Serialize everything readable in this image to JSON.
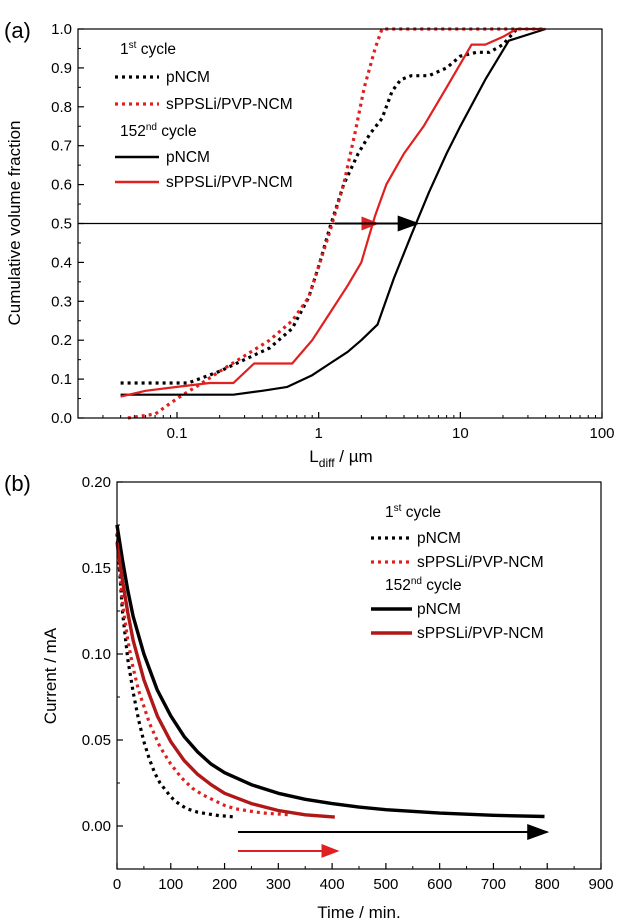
{
  "panel_labels": [
    "(a)",
    "(b)"
  ],
  "chart_data": [
    {
      "type": "line",
      "panel": "(a)",
      "xlabel_main": "L",
      "xlabel_sub": "diff",
      "xlabel_unit": " / µm",
      "ylabel": "Cumulative volume fraction",
      "xscale": "log",
      "xlim": [
        0.02,
        100
      ],
      "ylim": [
        0,
        1.0
      ],
      "xticks": [
        0.1,
        1,
        10,
        100
      ],
      "xtick_labels": [
        "0.1",
        "1",
        "10",
        "100"
      ],
      "yticks": [
        0.0,
        0.1,
        0.2,
        0.3,
        0.4,
        0.5,
        0.6,
        0.7,
        0.8,
        0.9,
        1.0
      ],
      "ytick_labels": [
        "0.0",
        "0.1",
        "0.2",
        "0.3",
        "0.4",
        "0.5",
        "0.6",
        "0.7",
        "0.8",
        "0.9",
        "1.0"
      ],
      "legend": {
        "group1_main": "1",
        "group1_sup": "st",
        "group1_rest": " cycle",
        "group2_main": "152",
        "group2_sup": "nd",
        "group2_rest": " cycle",
        "entries": [
          "pNCM",
          "sPPSLi/PVP-NCM",
          "pNCM",
          "sPPSLi/PVP-NCM"
        ]
      },
      "series": [
        {
          "name": "pNCM",
          "cycle": "1st",
          "color": "#000000",
          "style": "dotted",
          "x": [
            0.04,
            0.08,
            0.12,
            0.2,
            0.3,
            0.45,
            0.65,
            0.85,
            1.0,
            1.2,
            1.5,
            1.9,
            2.3,
            2.8,
            3.3,
            3.8,
            4.5,
            6,
            8,
            10,
            13,
            16,
            20,
            25
          ],
          "y": [
            0.09,
            0.09,
            0.09,
            0.12,
            0.15,
            0.18,
            0.23,
            0.31,
            0.39,
            0.49,
            0.6,
            0.68,
            0.73,
            0.77,
            0.84,
            0.87,
            0.88,
            0.88,
            0.9,
            0.93,
            0.94,
            0.94,
            0.96,
            1.0
          ]
        },
        {
          "name": "sPPSLi/PVP-NCM",
          "cycle": "1st",
          "color": "#e02020",
          "style": "dotted",
          "x": [
            0.045,
            0.07,
            0.1,
            0.15,
            0.2,
            0.3,
            0.45,
            0.65,
            0.85,
            1.0,
            1.2,
            1.5,
            1.8,
            2.1,
            2.5,
            2.8,
            3.0,
            5,
            10,
            20,
            40
          ],
          "y": [
            0.0,
            0.01,
            0.05,
            0.09,
            0.12,
            0.16,
            0.2,
            0.25,
            0.31,
            0.39,
            0.48,
            0.6,
            0.73,
            0.85,
            0.95,
            1.0,
            1.0,
            1.0,
            1.0,
            1.0,
            1.0
          ]
        },
        {
          "name": "pNCM",
          "cycle": "152nd",
          "color": "#000000",
          "style": "solid",
          "x": [
            0.04,
            0.06,
            0.1,
            0.15,
            0.25,
            0.4,
            0.6,
            0.9,
            1.2,
            1.6,
            2.0,
            2.6,
            3.4,
            4.5,
            6,
            8,
            10,
            15,
            22,
            40
          ],
          "y": [
            0.06,
            0.06,
            0.06,
            0.06,
            0.06,
            0.07,
            0.08,
            0.11,
            0.14,
            0.17,
            0.2,
            0.24,
            0.36,
            0.47,
            0.58,
            0.68,
            0.75,
            0.87,
            0.97,
            1.0
          ]
        },
        {
          "name": "sPPSLi/PVP-NCM",
          "cycle": "152nd",
          "color": "#e02020",
          "style": "solid",
          "x": [
            0.04,
            0.06,
            0.1,
            0.17,
            0.25,
            0.35,
            0.42,
            0.6,
            0.65,
            0.9,
            1.2,
            1.6,
            2.0,
            2.5,
            3.0,
            4.0,
            5.5,
            8,
            12,
            15,
            20,
            25,
            40
          ],
          "y": [
            0.055,
            0.07,
            0.08,
            0.09,
            0.09,
            0.14,
            0.14,
            0.14,
            0.14,
            0.2,
            0.27,
            0.34,
            0.4,
            0.52,
            0.6,
            0.68,
            0.75,
            0.85,
            0.96,
            0.96,
            0.98,
            1.0,
            1.0
          ]
        }
      ],
      "reference_line_y": 0.5,
      "arrows": [
        {
          "color": "#e02020",
          "from": 1.3,
          "to": 2.6
        },
        {
          "color": "#000000",
          "from": 1.3,
          "to": 5.0
        }
      ]
    },
    {
      "type": "line",
      "panel": "(b)",
      "xlabel": "Time / min.",
      "ylabel": "Current / mA",
      "xlim": [
        0,
        900
      ],
      "ylim": [
        -0.025,
        0.2
      ],
      "xticks": [
        0,
        100,
        200,
        300,
        400,
        500,
        600,
        700,
        800,
        900
      ],
      "xtick_labels": [
        "0",
        "100",
        "200",
        "300",
        "400",
        "500",
        "600",
        "700",
        "800",
        "900"
      ],
      "yticks": [
        0.0,
        0.05,
        0.1,
        0.15,
        0.2
      ],
      "ytick_labels": [
        "0.00",
        "0.05",
        "0.10",
        "0.15",
        "0.20"
      ],
      "legend": {
        "group1_main": "1",
        "group1_sup": "st",
        "group1_rest": " cycle",
        "group2_main": "152",
        "group2_sup": "nd",
        "group2_rest": " cycle",
        "entries": [
          "pNCM",
          "sPPSLi/PVP-NCM",
          "pNCM",
          "sPPSLi/PVP-NCM"
        ]
      },
      "series": [
        {
          "name": "pNCM",
          "cycle": "1st",
          "color": "#000000",
          "style": "dotted",
          "x": [
            0,
            10,
            20,
            30,
            40,
            50,
            60,
            70,
            80,
            90,
            100,
            110,
            120,
            130,
            140,
            150,
            160,
            170,
            180,
            190,
            200,
            210,
            220
          ],
          "y": [
            0.17,
            0.125,
            0.097,
            0.078,
            0.062,
            0.049,
            0.039,
            0.031,
            0.025,
            0.021,
            0.017,
            0.014,
            0.012,
            0.01,
            0.009,
            0.008,
            0.0075,
            0.007,
            0.0065,
            0.006,
            0.0058,
            0.0055,
            0.0052
          ]
        },
        {
          "name": "sPPSLi/PVP-NCM",
          "cycle": "1st",
          "color": "#e02020",
          "style": "dotted",
          "x": [
            0,
            10,
            20,
            30,
            40,
            60,
            80,
            100,
            120,
            140,
            160,
            180,
            200,
            220,
            240,
            260,
            280,
            300,
            320
          ],
          "y": [
            0.175,
            0.13,
            0.108,
            0.092,
            0.079,
            0.06,
            0.046,
            0.036,
            0.028,
            0.022,
            0.018,
            0.015,
            0.012,
            0.01,
            0.009,
            0.008,
            0.0073,
            0.007,
            0.0065
          ]
        },
        {
          "name": "pNCM",
          "cycle": "152nd",
          "color": "#000000",
          "style": "solid",
          "x": [
            0,
            10,
            20,
            30,
            50,
            75,
            100,
            125,
            150,
            175,
            200,
            250,
            300,
            350,
            400,
            450,
            500,
            600,
            700,
            795
          ],
          "y": [
            0.175,
            0.155,
            0.137,
            0.122,
            0.1,
            0.079,
            0.064,
            0.052,
            0.043,
            0.036,
            0.031,
            0.024,
            0.019,
            0.0155,
            0.013,
            0.011,
            0.0095,
            0.0075,
            0.0062,
            0.0055
          ]
        },
        {
          "name": "sPPSLi/PVP-NCM",
          "cycle": "152nd",
          "color": "#b01818",
          "style": "solid",
          "x": [
            0,
            10,
            20,
            30,
            50,
            75,
            100,
            125,
            150,
            175,
            200,
            250,
            300,
            350,
            405
          ],
          "y": [
            0.165,
            0.143,
            0.124,
            0.108,
            0.085,
            0.064,
            0.049,
            0.038,
            0.03,
            0.024,
            0.019,
            0.013,
            0.009,
            0.0065,
            0.0052
          ]
        }
      ],
      "arrows": [
        {
          "color": "#000000",
          "y": -0.0035,
          "from": 225,
          "to": 800
        },
        {
          "color": "#e02020",
          "y": -0.0145,
          "from": 225,
          "to": 410
        }
      ]
    }
  ]
}
